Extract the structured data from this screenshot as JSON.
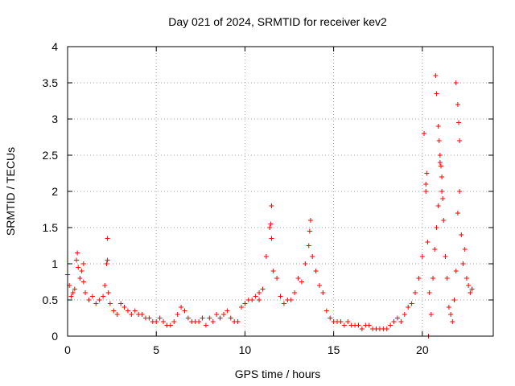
{
  "chart_data": {
    "type": "scatter",
    "title": "Day 021 of 2024, SRMTID for receiver kev2",
    "xlabel": "GPS time / hours",
    "ylabel": "SRMTID / TECUs",
    "xlim": [
      0,
      24
    ],
    "ylim": [
      0,
      4
    ],
    "xticks": [
      0,
      5,
      10,
      15,
      20
    ],
    "xtick_labels": [
      "0",
      "5",
      "10",
      "15",
      "20"
    ],
    "yticks": [
      0,
      0.5,
      1,
      1.5,
      2,
      2.5,
      3,
      3.5,
      4
    ],
    "ytick_labels": [
      "0",
      "0.5",
      "1",
      "1.5",
      "2",
      "2.5",
      "3",
      "3.5",
      "4"
    ],
    "grid": true,
    "marker": "+",
    "series": [
      {
        "name": "SRMTID",
        "color": "#ff0000",
        "x": [
          0.0,
          0.1,
          0.2,
          0.3,
          0.4,
          0.5,
          0.6,
          0.7,
          0.8,
          0.9,
          1.0,
          1.2,
          1.4,
          1.6,
          1.8,
          2.0,
          2.1,
          2.2,
          2.25,
          2.3,
          2.4,
          2.6,
          2.8,
          3.0,
          3.2,
          3.4,
          3.6,
          3.8,
          4.0,
          4.2,
          4.4,
          4.6,
          4.8,
          5.0,
          5.2,
          5.4,
          5.6,
          5.8,
          6.0,
          6.2,
          6.4,
          6.6,
          6.8,
          7.0,
          7.2,
          7.4,
          7.6,
          7.8,
          8.0,
          8.2,
          8.4,
          8.6,
          8.8,
          9.0,
          9.2,
          9.4,
          9.6,
          9.8,
          10.0,
          10.2,
          10.4,
          10.6,
          10.8,
          11.0,
          11.2,
          11.4,
          11.5,
          11.6,
          11.8,
          12.0,
          12.2,
          12.4,
          12.6,
          12.8,
          13.0,
          13.2,
          13.4,
          13.6,
          13.7,
          13.8,
          14.0,
          14.2,
          14.4,
          14.6,
          14.8,
          15.0,
          15.2,
          15.4,
          15.6,
          15.8,
          16.0,
          16.2,
          16.4,
          16.6,
          16.8,
          17.0,
          17.2,
          17.4,
          17.6,
          17.8,
          18.0,
          18.2,
          18.4,
          18.6,
          18.8,
          19.0,
          19.2,
          19.4,
          19.6,
          19.8,
          20.0,
          20.1,
          20.2,
          20.3,
          20.4,
          20.5,
          20.6,
          20.7,
          20.8,
          20.9,
          21.0,
          21.1,
          21.2,
          21.3,
          21.4,
          21.5,
          21.6,
          21.7,
          21.8,
          21.9,
          22.0,
          22.1,
          22.2,
          22.3,
          22.4,
          22.5,
          22.6,
          22.7,
          22.8,
          20.35,
          20.75,
          20.8,
          20.9,
          20.95,
          21.0,
          21.05,
          21.1,
          21.15,
          21.9,
          22.0,
          22.05,
          22.1,
          20.2,
          20.25,
          11.45,
          11.5,
          13.65,
          2.25,
          0.55,
          0.9,
          10.8
        ],
        "y": [
          0.85,
          0.7,
          0.55,
          0.6,
          0.65,
          1.05,
          0.95,
          0.8,
          0.9,
          0.75,
          0.6,
          0.5,
          0.55,
          0.45,
          0.5,
          0.55,
          0.7,
          1.0,
          1.35,
          0.6,
          0.45,
          0.35,
          0.3,
          0.45,
          0.4,
          0.35,
          0.3,
          0.35,
          0.3,
          0.3,
          0.25,
          0.25,
          0.2,
          0.2,
          0.25,
          0.2,
          0.15,
          0.15,
          0.2,
          0.3,
          0.4,
          0.35,
          0.25,
          0.2,
          0.2,
          0.2,
          0.25,
          0.15,
          0.25,
          0.2,
          0.3,
          0.25,
          0.3,
          0.35,
          0.25,
          0.2,
          0.2,
          0.4,
          0.45,
          0.5,
          0.5,
          0.55,
          0.6,
          0.65,
          1.1,
          1.5,
          1.8,
          0.9,
          0.8,
          0.55,
          0.45,
          0.5,
          0.5,
          0.6,
          0.8,
          0.75,
          1.0,
          1.25,
          1.6,
          1.1,
          0.9,
          0.7,
          0.6,
          0.35,
          0.25,
          0.2,
          0.2,
          0.2,
          0.15,
          0.2,
          0.15,
          0.15,
          0.15,
          0.1,
          0.15,
          0.15,
          0.1,
          0.1,
          0.1,
          0.1,
          0.1,
          0.15,
          0.2,
          0.25,
          0.2,
          0.3,
          0.4,
          0.45,
          0.6,
          0.8,
          1.1,
          2.8,
          2.1,
          1.3,
          0.6,
          0.3,
          0.8,
          1.2,
          1.5,
          1.8,
          2.4,
          2.0,
          1.6,
          1.1,
          0.8,
          0.4,
          0.3,
          0.2,
          0.5,
          0.9,
          1.7,
          2.0,
          1.4,
          1.0,
          1.2,
          0.8,
          0.7,
          0.6,
          0.65,
          0.0,
          3.6,
          3.35,
          2.9,
          2.7,
          2.5,
          2.35,
          2.2,
          1.9,
          3.5,
          3.2,
          2.95,
          2.7,
          2.0,
          2.25,
          1.55,
          1.35,
          1.45,
          1.05,
          1.15,
          1.0,
          0.5
        ]
      }
    ]
  }
}
